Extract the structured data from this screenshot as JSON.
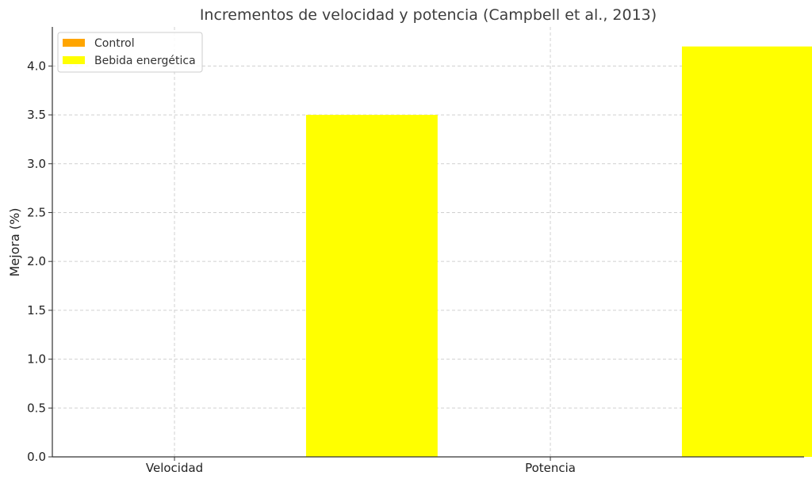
{
  "chart_data": {
    "type": "bar",
    "title": "Incrementos de velocidad y potencia (Campbell et al., 2013)",
    "xlabel": "",
    "ylabel": "Mejora (%)",
    "categories": [
      "Velocidad",
      "Potencia"
    ],
    "series": [
      {
        "name": "Control",
        "values": [
          0,
          0
        ],
        "color": "#FFA500"
      },
      {
        "name": "Bebida energética",
        "values": [
          3.5,
          4.2
        ],
        "color": "#FFFF00"
      }
    ],
    "ylim": [
      0,
      4.4
    ],
    "yticks": [
      "0.0",
      "0.5",
      "1.0",
      "1.5",
      "2.0",
      "2.5",
      "3.0",
      "3.5",
      "4.0"
    ],
    "grid": true,
    "legend_position": "top-left"
  }
}
